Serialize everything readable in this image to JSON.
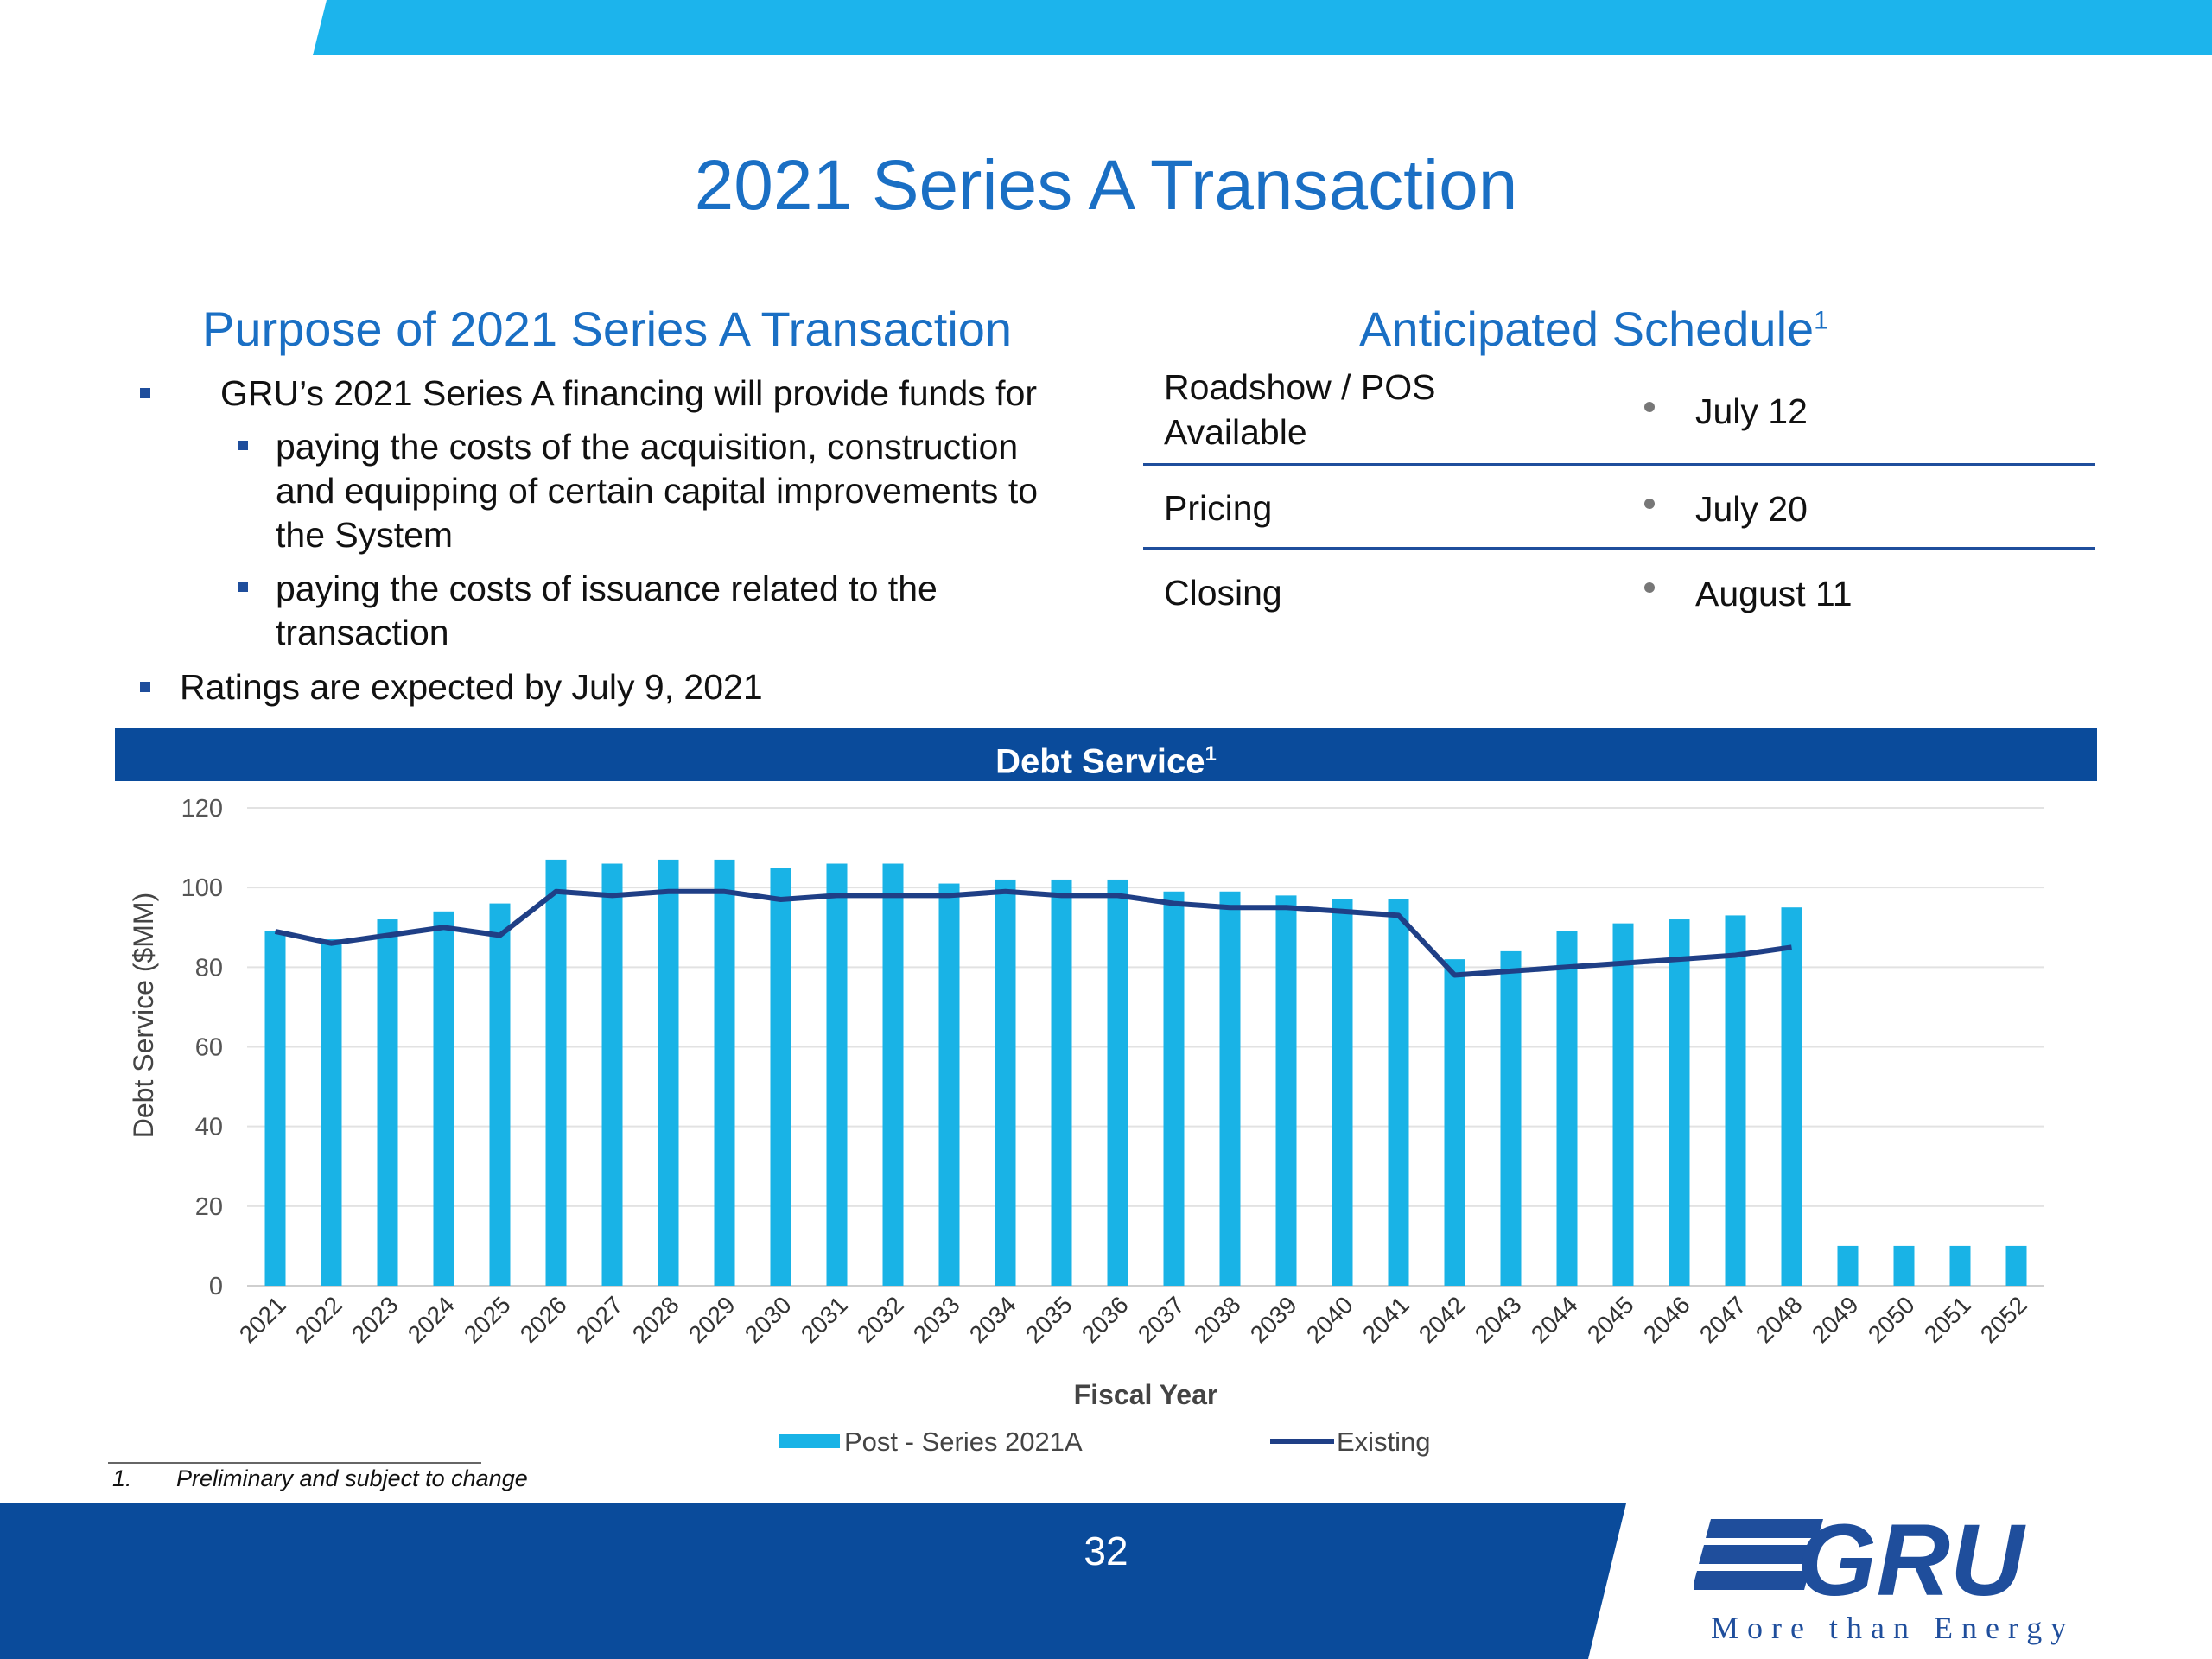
{
  "slide": {
    "title": "2021 Series A Transaction",
    "page_number": "32"
  },
  "purpose": {
    "heading": "Purpose of 2021 Series A Transaction",
    "bullet1": "GRU’s 2021 Series A financing will provide funds for",
    "sub1_lines": [
      "paying the costs of the acquisition, construction",
      "and equipping of certain capital improvements to",
      "the System"
    ],
    "sub2_lines": [
      "paying the costs of issuance related to the",
      "transaction"
    ],
    "bullet2": "Ratings are expected by July 9, 2021"
  },
  "schedule": {
    "heading": "Anticipated Schedule",
    "heading_sup": "1",
    "rows": [
      {
        "label_lines": [
          "Roadshow / POS",
          "Available"
        ],
        "date": "July 12"
      },
      {
        "label_lines": [
          "Pricing"
        ],
        "date": "July 20"
      },
      {
        "label_lines": [
          "Closing"
        ],
        "date": "August 11"
      }
    ]
  },
  "debt_band": {
    "title": "Debt Service",
    "sup": "1"
  },
  "footnote": {
    "number": "1.",
    "text": "Preliminary and subject to change"
  },
  "logo": {
    "text": "GRU",
    "tagline": "More than Energy"
  },
  "colors": {
    "bar": "#19b3e6",
    "line": "#1f3f86",
    "band": "#0a4b9b",
    "title": "#1a6fc4",
    "accent_light": "#1cb4ec"
  },
  "chart_data": {
    "type": "bar",
    "title": "Debt Service",
    "xlabel": "Fiscal Year",
    "ylabel": "Debt Service ($MM)",
    "ylim": [
      0,
      120
    ],
    "yticks": [
      0,
      20,
      40,
      60,
      80,
      100,
      120
    ],
    "grid": true,
    "legend_position": "bottom",
    "categories": [
      "2021",
      "2022",
      "2023",
      "2024",
      "2025",
      "2026",
      "2027",
      "2028",
      "2029",
      "2030",
      "2031",
      "2032",
      "2033",
      "2034",
      "2035",
      "2036",
      "2037",
      "2038",
      "2039",
      "2040",
      "2041",
      "2042",
      "2043",
      "2044",
      "2045",
      "2046",
      "2047",
      "2048",
      "2049",
      "2050",
      "2051",
      "2052"
    ],
    "series": [
      {
        "name": "Post - Series 2021A",
        "type": "bar",
        "values": [
          89,
          87,
          92,
          94,
          96,
          107,
          106,
          107,
          107,
          105,
          106,
          106,
          101,
          102,
          102,
          102,
          99,
          99,
          98,
          97,
          97,
          82,
          84,
          89,
          91,
          92,
          93,
          95,
          10,
          10,
          10,
          10
        ]
      },
      {
        "name": "Existing",
        "type": "line",
        "values": [
          89,
          86,
          88,
          90,
          88,
          99,
          98,
          99,
          99,
          97,
          98,
          98,
          98,
          99,
          98,
          98,
          96,
          95,
          95,
          94,
          93,
          78,
          79,
          80,
          81,
          82,
          83,
          85,
          null,
          null,
          null,
          null
        ]
      }
    ]
  }
}
